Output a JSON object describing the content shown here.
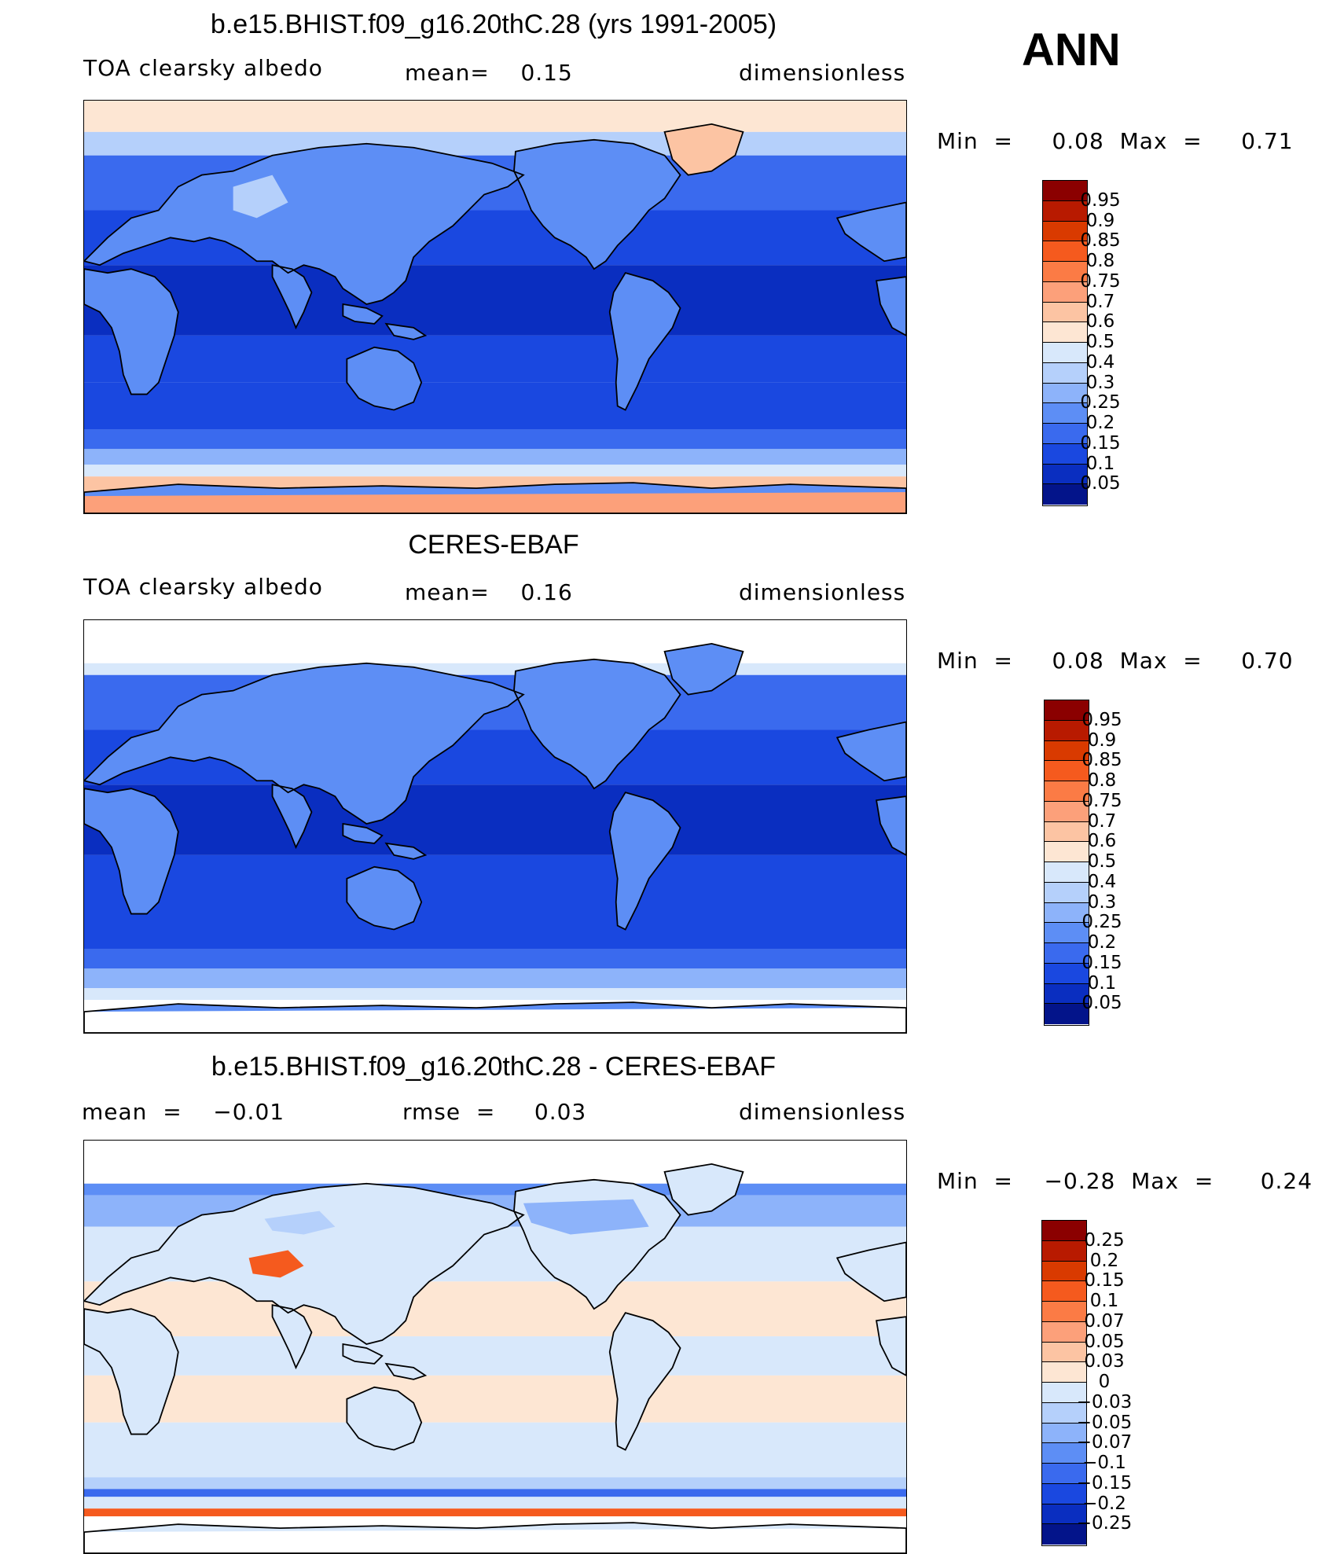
{
  "season": "ANN",
  "panels": [
    {
      "title": "b.e15.BHIST.f09_g16.20thC.28 (yrs 1991-2005)",
      "left": "TOA clearsky albedo",
      "middle": "mean=    0.15",
      "right": "dimensionless",
      "minmax": "Min  =     0.08  Max  =     0.71",
      "field": "model",
      "colorbar": {
        "labels": [
          "0.95",
          "0.9",
          "0.85",
          "0.8",
          "0.75",
          "0.7",
          "0.6",
          "0.5",
          "0.4",
          "0.3",
          "0.25",
          "0.2",
          "0.15",
          "0.1",
          "0.05"
        ],
        "colors": [
          "#8b0000",
          "#b81a00",
          "#d93a00",
          "#f55a1e",
          "#fb7b45",
          "#fca07a",
          "#fcc4a3",
          "#fde6d3",
          "#d8e8fb",
          "#b5d0fb",
          "#8db3fa",
          "#5d8ef5",
          "#3a6aee",
          "#1a48e0",
          "#0a2ec0",
          "#03148a"
        ]
      }
    },
    {
      "title": "CERES-EBAF",
      "left": "TOA clearsky albedo",
      "middle": "mean=    0.16",
      "right": "dimensionless",
      "minmax": "Min  =     0.08  Max  =     0.70",
      "field": "obs",
      "colorbar": {
        "labels": [
          "0.95",
          "0.9",
          "0.85",
          "0.8",
          "0.75",
          "0.7",
          "0.6",
          "0.5",
          "0.4",
          "0.3",
          "0.25",
          "0.2",
          "0.15",
          "0.1",
          "0.05"
        ],
        "colors": [
          "#8b0000",
          "#b81a00",
          "#d93a00",
          "#f55a1e",
          "#fb7b45",
          "#fca07a",
          "#fcc4a3",
          "#fde6d3",
          "#d8e8fb",
          "#b5d0fb",
          "#8db3fa",
          "#5d8ef5",
          "#3a6aee",
          "#1a48e0",
          "#0a2ec0",
          "#03148a"
        ]
      }
    },
    {
      "title": "b.e15.BHIST.f09_g16.20thC.28 - CERES-EBAF",
      "left": "mean  =    −0.01",
      "middle": "rmse  =     0.03",
      "right": "dimensionless",
      "minmax": "Min  =    −0.28  Max  =      0.24",
      "field": "diff",
      "colorbar": {
        "labels": [
          "0.25",
          "0.2",
          "0.15",
          "0.1",
          "0.07",
          "0.05",
          "0.03",
          "0",
          "−0.03",
          "−0.05",
          "−0.07",
          "−0.1",
          "−0.15",
          "−0.2",
          "−0.25"
        ],
        "colors": [
          "#8b0000",
          "#b81a00",
          "#d93a00",
          "#f55a1e",
          "#fb7b45",
          "#fca07a",
          "#fcc4a3",
          "#fde6d3",
          "#d8e8fb",
          "#b5d0fb",
          "#8db3fa",
          "#5d8ef5",
          "#3a6aee",
          "#1a48e0",
          "#0a2ec0",
          "#03148a"
        ]
      }
    }
  ]
}
